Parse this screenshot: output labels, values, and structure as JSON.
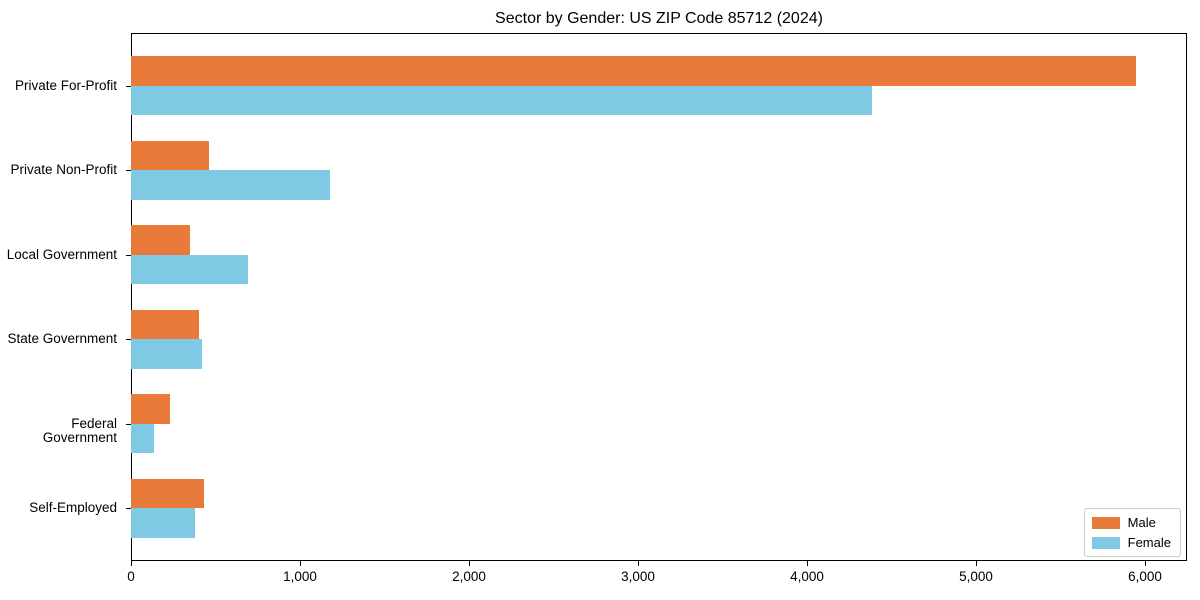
{
  "chart_data": {
    "type": "bar",
    "orientation": "horizontal",
    "title": "Sector by Gender: US ZIP Code 85712 (2024)",
    "categories": [
      "Private For-Profit",
      "Private Non-Profit",
      "Local Government",
      "State Government",
      "Federal Government",
      "Self-Employed"
    ],
    "series": [
      {
        "name": "Male",
        "color": "#E87B3A",
        "values": [
          5950,
          460,
          350,
          400,
          230,
          430
        ]
      },
      {
        "name": "Female",
        "color": "#7FC9E5",
        "values": [
          4385,
          1180,
          690,
          420,
          135,
          380
        ]
      }
    ],
    "xlabel": "",
    "ylabel": "",
    "xlim": [
      0,
      6250
    ],
    "xticks": [
      0,
      1000,
      2000,
      3000,
      4000,
      5000,
      6000
    ],
    "xtick_labels": [
      "0",
      "1,000",
      "2,000",
      "3,000",
      "4,000",
      "5,000",
      "6,000"
    ],
    "grid": false,
    "legend_position": "lower right",
    "axis_color": "#000000"
  }
}
